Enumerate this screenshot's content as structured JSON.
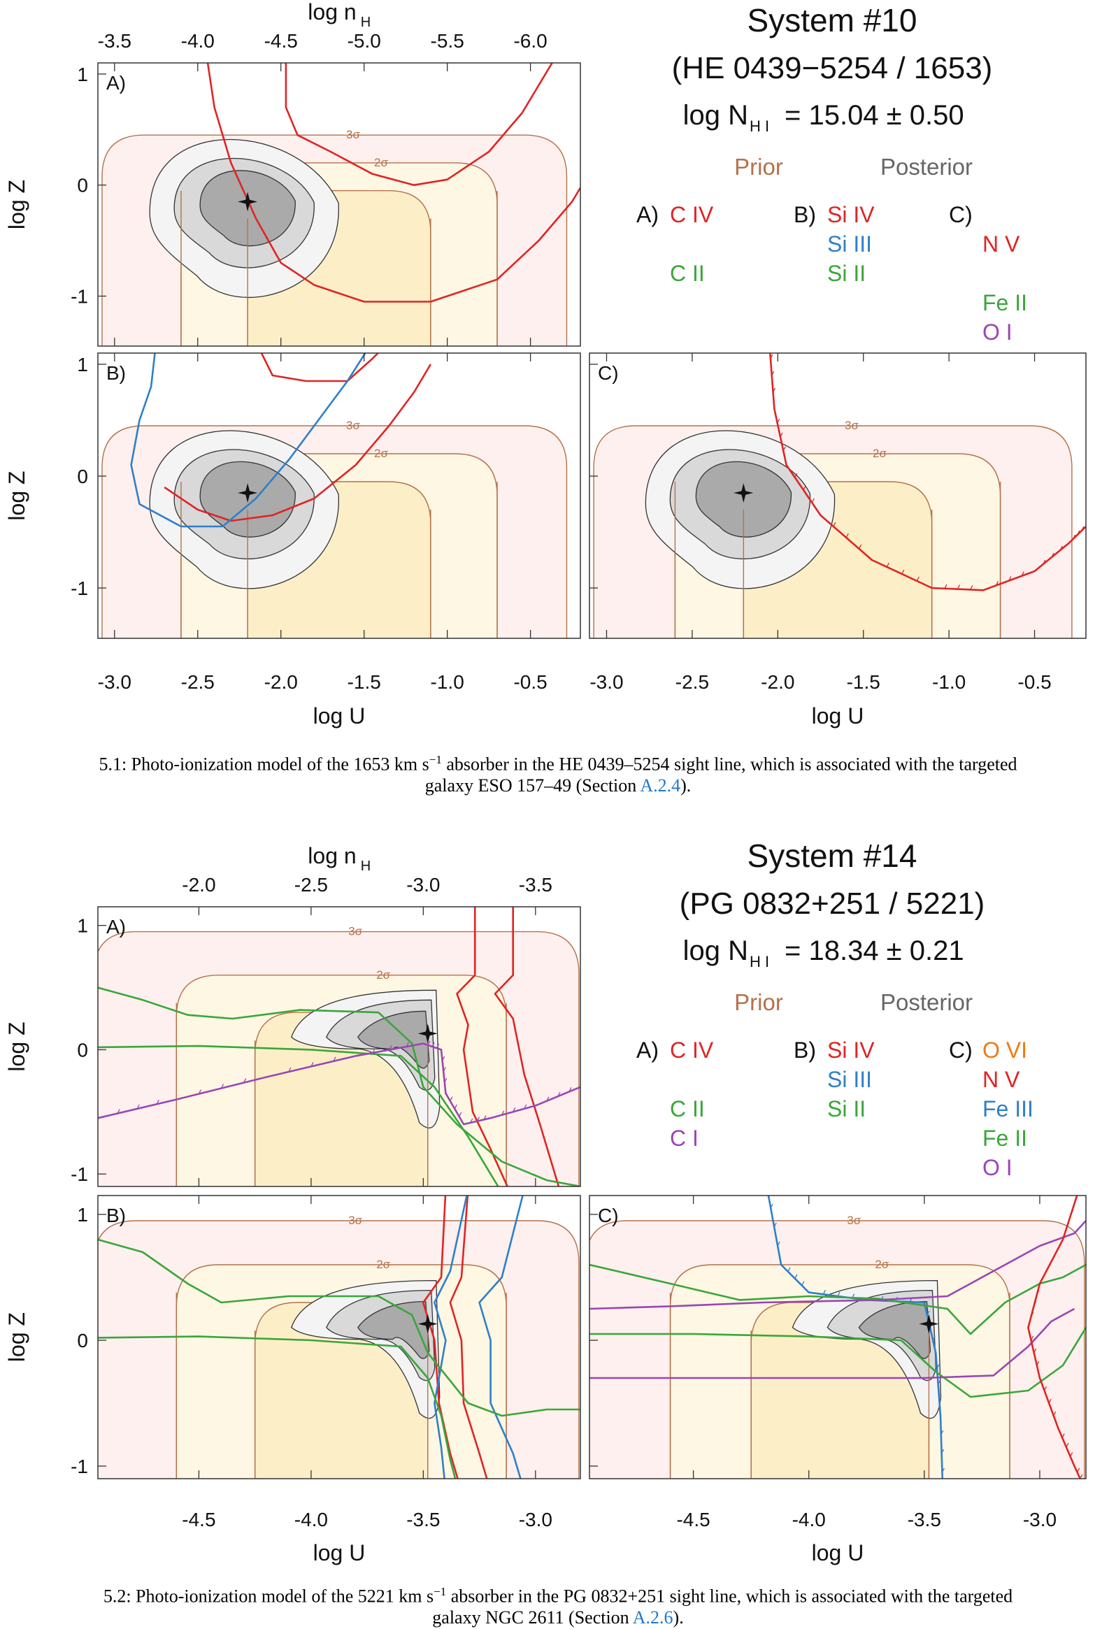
{
  "figures": [
    {
      "title_line1": "System #10",
      "title_line2": "(HE 0439−5254 / 1653)",
      "nhi_prefix": "log N",
      "nhi_sub": "H I",
      "nhi_value": "= 15.04 ± 0.50",
      "prior_label": "Prior",
      "posterior_label": "Posterior",
      "top_axis_label": "log n",
      "top_axis_sub": "H",
      "top_ticks": [
        "-3.5",
        "-4.0",
        "-4.5",
        "-5.0",
        "-5.5",
        "-6.0"
      ],
      "top_tick_u": [
        -3.0,
        -2.5,
        -2.0,
        -1.5,
        -1.0,
        -0.5
      ],
      "x_ticks": [
        "-3.0",
        "-2.5",
        "-2.0",
        "-1.5",
        "-1.0",
        "-0.5"
      ],
      "x_tick_vals": [
        -3.0,
        -2.5,
        -2.0,
        -1.5,
        -1.0,
        -0.5
      ],
      "y_ticks": [
        "1",
        "0",
        "-1"
      ],
      "y_tick_vals": [
        1,
        0,
        -1
      ],
      "x_range": [
        -3.1,
        -0.2
      ],
      "y_range": [
        -1.45,
        1.1
      ],
      "x_label": "log U",
      "y_label": "log Z",
      "best_fit": {
        "u": -2.2,
        "z": -0.15
      },
      "prior_edges": [
        -2.6,
        -2.2,
        -1.1,
        -0.7
      ],
      "panel_labels": [
        "A)",
        "B)",
        "C)"
      ],
      "legend": [
        {
          "group": "A)",
          "ions": [
            {
              "name": "C IV",
              "color": "#e02424"
            },
            {
              "name": "",
              "color": "#e02424"
            },
            {
              "name": "C II",
              "color": "#3aa63a"
            }
          ]
        },
        {
          "group": "B)",
          "ions": [
            {
              "name": "Si IV",
              "color": "#e02424"
            },
            {
              "name": "Si III",
              "color": "#2f7fc9"
            },
            {
              "name": "Si II",
              "color": "#3aa63a"
            }
          ]
        },
        {
          "group": "C)",
          "ions": [
            {
              "name": "",
              "color": "#e02424"
            },
            {
              "name": "N V",
              "color": "#e02424"
            },
            {
              "name": "",
              "color": "#e02424"
            },
            {
              "name": "Fe II",
              "color": "#3aa63a"
            },
            {
              "name": "O I",
              "color": "#9b45b5"
            }
          ]
        }
      ],
      "caption_prefix": "5.1: Photo-ionization model of the 1653 km s",
      "caption_sup": "−1",
      "caption_mid": " absorber in the HE 0439–5254 sight line, which is associated with the targeted",
      "caption_line2a": "galaxy ESO 157–49 (Section ",
      "caption_ref": "A.2.4",
      "caption_line2b": ")."
    },
    {
      "title_line1": "System #14",
      "title_line2": "(PG 0832+251 / 5221)",
      "nhi_prefix": "log N",
      "nhi_sub": "H I",
      "nhi_value": "= 18.34 ± 0.21",
      "prior_label": "Prior",
      "posterior_label": "Posterior",
      "top_axis_label": "log n",
      "top_axis_sub": "H",
      "top_ticks": [
        "-2.0",
        "-2.5",
        "-3.0",
        "-3.5"
      ],
      "top_tick_u": [
        -4.5,
        -4.0,
        -3.5,
        -3.0
      ],
      "x_ticks": [
        "-4.5",
        "-4.0",
        "-3.5",
        "-3.0"
      ],
      "x_tick_vals": [
        -4.5,
        -4.0,
        -3.5,
        -3.0
      ],
      "y_ticks": [
        "1",
        "0",
        "-1"
      ],
      "y_tick_vals": [
        1,
        0,
        -1
      ],
      "x_range": [
        -4.95,
        -2.8
      ],
      "y_range": [
        -1.1,
        1.15
      ],
      "x_label": "log U",
      "y_label": "log Z",
      "best_fit": {
        "u": -3.48,
        "z": 0.13
      },
      "prior_edges": [
        -4.6,
        -4.25,
        -3.48,
        -3.13
      ],
      "panel_labels": [
        "A)",
        "B)",
        "C)"
      ],
      "legend": [
        {
          "group": "A)",
          "ions": [
            {
              "name": "C IV",
              "color": "#e02424"
            },
            {
              "name": "",
              "color": "#e02424"
            },
            {
              "name": "C II",
              "color": "#3aa63a"
            },
            {
              "name": "C I",
              "color": "#9b45b5"
            }
          ]
        },
        {
          "group": "B)",
          "ions": [
            {
              "name": "Si IV",
              "color": "#e02424"
            },
            {
              "name": "Si III",
              "color": "#2f7fc9"
            },
            {
              "name": "Si II",
              "color": "#3aa63a"
            }
          ]
        },
        {
          "group": "C)",
          "ions": [
            {
              "name": "O VI",
              "color": "#f07a10"
            },
            {
              "name": "N V",
              "color": "#e02424"
            },
            {
              "name": "Fe III",
              "color": "#2f7fc9"
            },
            {
              "name": "Fe II",
              "color": "#3aa63a"
            },
            {
              "name": "O I",
              "color": "#9b45b5"
            }
          ]
        }
      ],
      "caption_prefix": "5.2: Photo-ionization model of the 5221 km s",
      "caption_sup": "−1",
      "caption_mid": " absorber in the PG 0832+251 sight line, which is associated with the targeted",
      "caption_line2a": "galaxy NGC 2611 (Section ",
      "caption_ref": "A.2.6",
      "caption_line2b": ")."
    }
  ],
  "chart_data": [
    {
      "type": "contour",
      "title": "System #10 (HE 0439−5254 / 1653)",
      "xlabel": "log U",
      "ylabel": "log Z",
      "xlim": [
        -3.1,
        -0.2
      ],
      "ylim": [
        -1.45,
        1.1
      ],
      "best_fit": {
        "log_U": -2.2,
        "log_Z": -0.15
      },
      "log_NHI": "15.04 ± 0.50",
      "panels": [
        "A) C IV, C II",
        "B) Si IV, Si III, Si II",
        "C) N V, Fe II, O I"
      ]
    },
    {
      "type": "contour",
      "title": "System #14 (PG 0832+251 / 5221)",
      "xlabel": "log U",
      "ylabel": "log Z",
      "xlim": [
        -4.95,
        -2.8
      ],
      "ylim": [
        -1.1,
        1.15
      ],
      "best_fit": {
        "log_U": -3.48,
        "log_Z": 0.13
      },
      "log_NHI": "18.34 ± 0.21",
      "panels": [
        "A) C IV, C II, C I",
        "B) Si IV, Si III, Si II",
        "C) O VI, N V, Fe III, Fe II, O I"
      ]
    }
  ]
}
